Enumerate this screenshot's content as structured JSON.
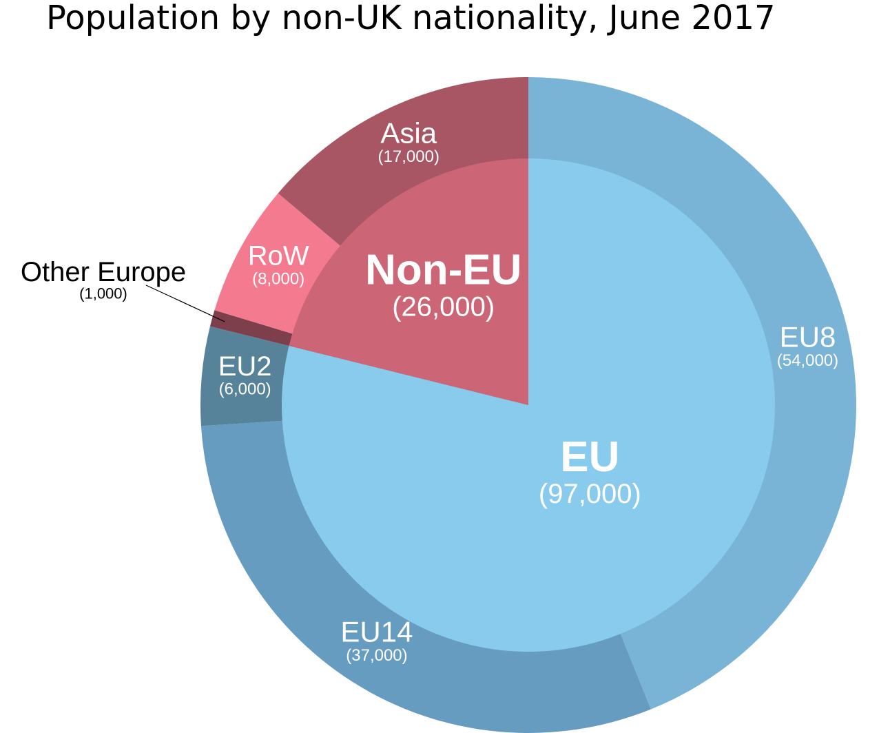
{
  "chart_data": {
    "type": "pie",
    "variant": "nested-donut",
    "title": "Population by non-UK nationality, June 2017",
    "inner": [
      {
        "name": "EU",
        "value_label": "(97,000)",
        "value": 97000,
        "color": "#89CBEC"
      },
      {
        "name": "Non-EU",
        "value_label": "(26,000)",
        "value": 26000,
        "color": "#CC6677"
      }
    ],
    "outer": [
      {
        "name": "EU8",
        "value_label": "(54,000)",
        "value": 54000,
        "group": "EU",
        "color": "#79B3D6"
      },
      {
        "name": "EU14",
        "value_label": "(37,000)",
        "value": 37000,
        "group": "EU",
        "color": "#669CC0"
      },
      {
        "name": "EU2",
        "value_label": "(6,000)",
        "value": 6000,
        "group": "EU",
        "color": "#56829A"
      },
      {
        "name": "Other Europe",
        "value_label": "(1,000)",
        "value": 1000,
        "group": "Non-EU",
        "color": "#7D3F4C"
      },
      {
        "name": "RoW",
        "value_label": "(8,000)",
        "value": 8000,
        "group": "Non-EU",
        "color": "#F47B8F"
      },
      {
        "name": "Asia",
        "value_label": "(17,000)",
        "value": 17000,
        "group": "Non-EU",
        "color": "#A85664"
      }
    ]
  }
}
